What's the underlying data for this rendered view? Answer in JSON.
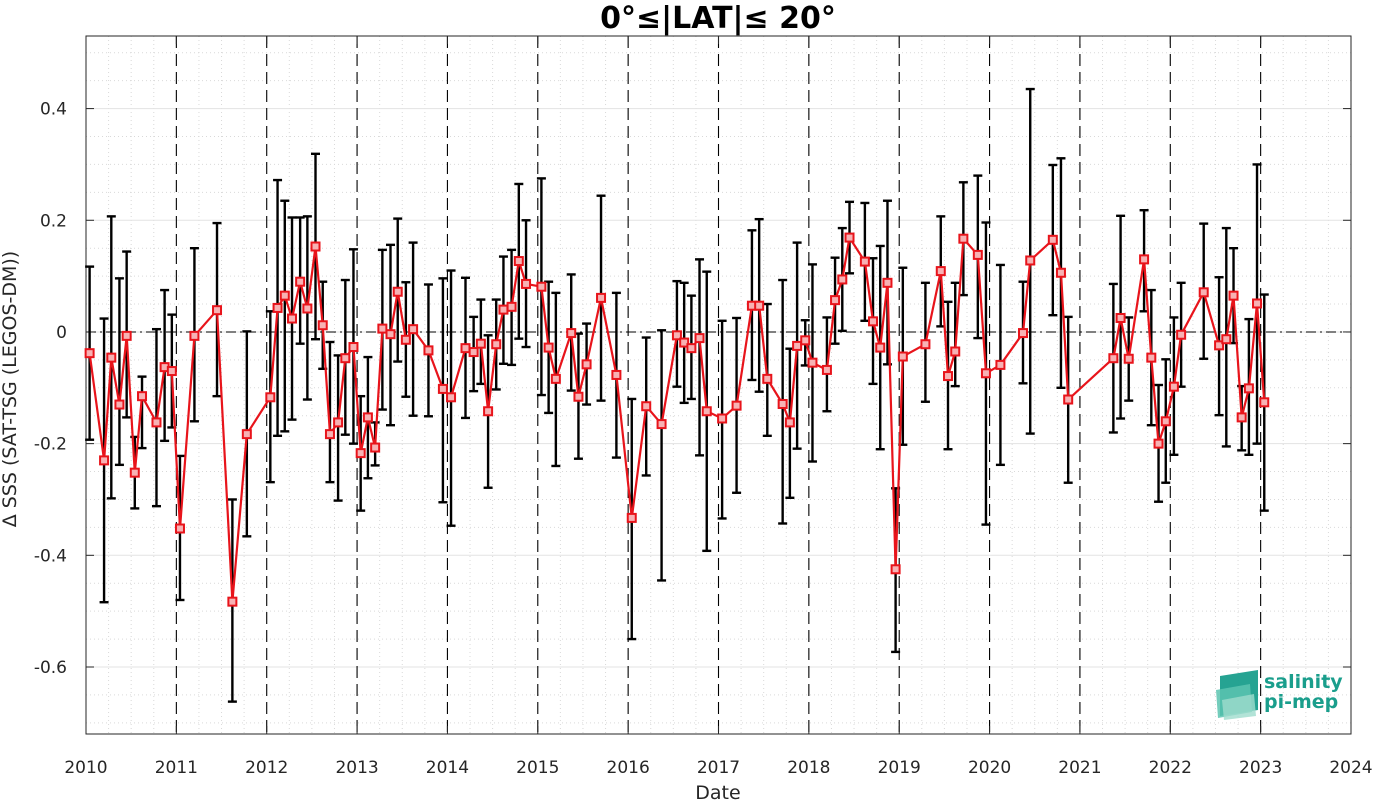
{
  "chart_data": {
    "type": "line",
    "title": "0°≤|LAT|≤ 20°",
    "xlabel": "Date",
    "ylabel": "Δ SSS (SAT-TSG (LEGOS-DM))",
    "xlim": [
      2010,
      2024
    ],
    "ylim": [
      -0.72,
      0.53
    ],
    "x_ticks": [
      "2010",
      "2011",
      "2012",
      "2013",
      "2014",
      "2015",
      "2016",
      "2017",
      "2018",
      "2019",
      "2020",
      "2021",
      "2022",
      "2023",
      "2024"
    ],
    "y_ticks": [
      0.4,
      0.2,
      0,
      -0.2,
      -0.4,
      -0.6
    ],
    "y_tick_labels": [
      "0.4",
      "0.2",
      "0",
      "-0.2",
      "-0.4",
      "-0.6"
    ],
    "grid": true,
    "zero_line": "dash-dot",
    "year_boundaries": "dashed vertical lines",
    "line_color": "#e8141b",
    "errorbar_color": "#000000",
    "x": [
      2010.04,
      2010.2,
      2010.28,
      2010.37,
      2010.45,
      2010.54,
      2010.62,
      2010.78,
      2010.87,
      2010.95,
      2011.04,
      2011.2,
      2011.45,
      2011.62,
      2011.78,
      2012.04,
      2012.12,
      2012.2,
      2012.28,
      2012.37,
      2012.45,
      2012.54,
      2012.62,
      2012.7,
      2012.79,
      2012.87,
      2012.96,
      2013.04,
      2013.12,
      2013.2,
      2013.28,
      2013.37,
      2013.45,
      2013.54,
      2013.62,
      2013.79,
      2013.95,
      2014.04,
      2014.2,
      2014.29,
      2014.37,
      2014.45,
      2014.54,
      2014.62,
      2014.71,
      2014.79,
      2014.87,
      2015.04,
      2015.12,
      2015.2,
      2015.37,
      2015.45,
      2015.54,
      2015.7,
      2015.87,
      2016.04,
      2016.2,
      2016.37,
      2016.54,
      2016.62,
      2016.7,
      2016.79,
      2016.87,
      2017.04,
      2017.2,
      2017.37,
      2017.45,
      2017.54,
      2017.71,
      2017.79,
      2017.87,
      2017.96,
      2018.04,
      2018.2,
      2018.29,
      2018.37,
      2018.45,
      2018.62,
      2018.71,
      2018.79,
      2018.87,
      2018.96,
      2019.04,
      2019.29,
      2019.46,
      2019.54,
      2019.62,
      2019.71,
      2019.87,
      2019.96,
      2020.12,
      2020.37,
      2020.45,
      2020.7,
      2020.79,
      2020.87,
      2021.37,
      2021.45,
      2021.54,
      2021.71,
      2021.79,
      2021.87,
      2021.95,
      2022.04,
      2022.12,
      2022.37,
      2022.54,
      2022.62,
      2022.7,
      2022.79,
      2022.87,
      2022.96,
      2023.04
    ],
    "series": [
      {
        "values": [
          -0.038,
          -0.23,
          -0.046,
          -0.13,
          -0.007,
          -0.252,
          -0.115,
          -0.162,
          -0.063,
          -0.07,
          -0.352,
          -0.007,
          0.039,
          -0.483,
          -0.183,
          -0.117,
          0.043,
          0.065,
          0.024,
          0.09,
          0.042,
          0.153,
          0.012,
          -0.183,
          -0.162,
          -0.047,
          -0.027,
          -0.217,
          -0.153,
          -0.207,
          0.006,
          -0.004,
          0.072,
          -0.014,
          0.005,
          -0.033,
          -0.102,
          -0.117,
          -0.029,
          -0.036,
          -0.021,
          -0.142,
          -0.022,
          0.04,
          0.045,
          0.127,
          0.086,
          0.081,
          -0.028,
          -0.084,
          -0.002,
          -0.116,
          -0.058,
          0.061,
          -0.077,
          -0.333,
          -0.133,
          -0.165,
          -0.006,
          -0.019,
          -0.029,
          -0.011,
          -0.142,
          -0.155,
          -0.132,
          0.047,
          0.047,
          -0.084,
          -0.129,
          -0.162,
          -0.025,
          -0.015,
          -0.055,
          -0.068,
          0.057,
          0.094,
          0.169,
          0.126,
          0.019,
          -0.028,
          0.088,
          -0.425,
          -0.044,
          -0.022,
          0.109,
          -0.079,
          -0.035,
          0.167,
          0.138,
          -0.074,
          -0.059,
          -0.002,
          0.128,
          0.165,
          0.106,
          -0.121,
          -0.047,
          0.025,
          -0.048,
          0.13,
          -0.046,
          -0.2,
          -0.16,
          -0.098,
          -0.005,
          0.071,
          -0.024,
          -0.013,
          0.065,
          -0.153,
          -0.101,
          0.051,
          -0.126
        ],
        "err_high": [
          0.117,
          0.024,
          0.207,
          0.096,
          0.144,
          -0.188,
          -0.08,
          0.005,
          0.075,
          0.031,
          -0.222,
          0.15,
          0.195,
          -0.3,
          0.001,
          0.037,
          0.272,
          0.235,
          0.205,
          0.205,
          0.207,
          0.319,
          0.09,
          -0.018,
          -0.042,
          0.093,
          0.148,
          -0.115,
          -0.045,
          -0.162,
          0.147,
          0.156,
          0.203,
          0.089,
          0.16,
          0.085,
          0.096,
          0.11,
          0.097,
          0.027,
          0.058,
          -0.006,
          0.058,
          0.135,
          0.147,
          0.265,
          0.2,
          0.275,
          0.09,
          0.07,
          0.103,
          -0.003,
          0.015,
          0.244,
          0.07,
          -0.12,
          -0.01,
          0.003,
          0.091,
          0.088,
          0.065,
          0.13,
          0.108,
          0.02,
          0.025,
          0.182,
          0.202,
          0.05,
          0.093,
          -0.03,
          0.16,
          0.021,
          0.121,
          0.026,
          0.133,
          0.186,
          0.233,
          0.231,
          0.132,
          0.154,
          0.235,
          -0.28,
          0.115,
          0.088,
          0.207,
          0.054,
          0.088,
          0.268,
          0.28,
          0.196,
          0.12,
          0.09,
          0.435,
          0.299,
          0.311,
          0.027,
          0.086,
          0.208,
          0.026,
          0.218,
          0.075,
          -0.095,
          -0.049,
          0.026,
          0.088,
          0.194,
          0.098,
          0.186,
          0.15,
          -0.097,
          0.023,
          0.3,
          0.067
        ],
        "err_low": [
          -0.193,
          -0.484,
          -0.298,
          -0.238,
          -0.153,
          -0.316,
          -0.208,
          -0.312,
          -0.195,
          -0.171,
          -0.48,
          -0.16,
          -0.115,
          -0.662,
          -0.366,
          -0.269,
          -0.186,
          -0.178,
          -0.157,
          -0.021,
          -0.121,
          -0.013,
          -0.066,
          -0.269,
          -0.302,
          -0.184,
          -0.2,
          -0.32,
          -0.262,
          -0.239,
          -0.139,
          -0.167,
          -0.053,
          -0.116,
          -0.15,
          -0.151,
          -0.305,
          -0.347,
          -0.154,
          -0.106,
          -0.093,
          -0.279,
          -0.103,
          -0.057,
          -0.059,
          -0.012,
          -0.027,
          -0.113,
          -0.145,
          -0.24,
          -0.105,
          -0.227,
          -0.13,
          -0.123,
          -0.225,
          -0.55,
          -0.257,
          -0.445,
          -0.098,
          -0.127,
          -0.12,
          -0.221,
          -0.392,
          -0.334,
          -0.288,
          -0.086,
          -0.107,
          -0.186,
          -0.343,
          -0.297,
          -0.209,
          -0.06,
          -0.232,
          -0.142,
          -0.021,
          0.002,
          0.105,
          0.02,
          -0.093,
          -0.21,
          -0.058,
          -0.573,
          -0.202,
          -0.125,
          0.01,
          -0.21,
          -0.097,
          0.066,
          -0.011,
          -0.345,
          -0.238,
          -0.092,
          -0.182,
          0.03,
          -0.1,
          -0.27,
          -0.18,
          -0.155,
          -0.123,
          0.037,
          -0.167,
          -0.304,
          -0.27,
          -0.22,
          -0.098,
          -0.048,
          -0.149,
          -0.205,
          -0.02,
          -0.212,
          -0.22,
          -0.2,
          -0.32
        ]
      }
    ]
  },
  "logo": {
    "line1": "salinity",
    "line2": "pi-mep",
    "color": "#1a9e8c"
  }
}
